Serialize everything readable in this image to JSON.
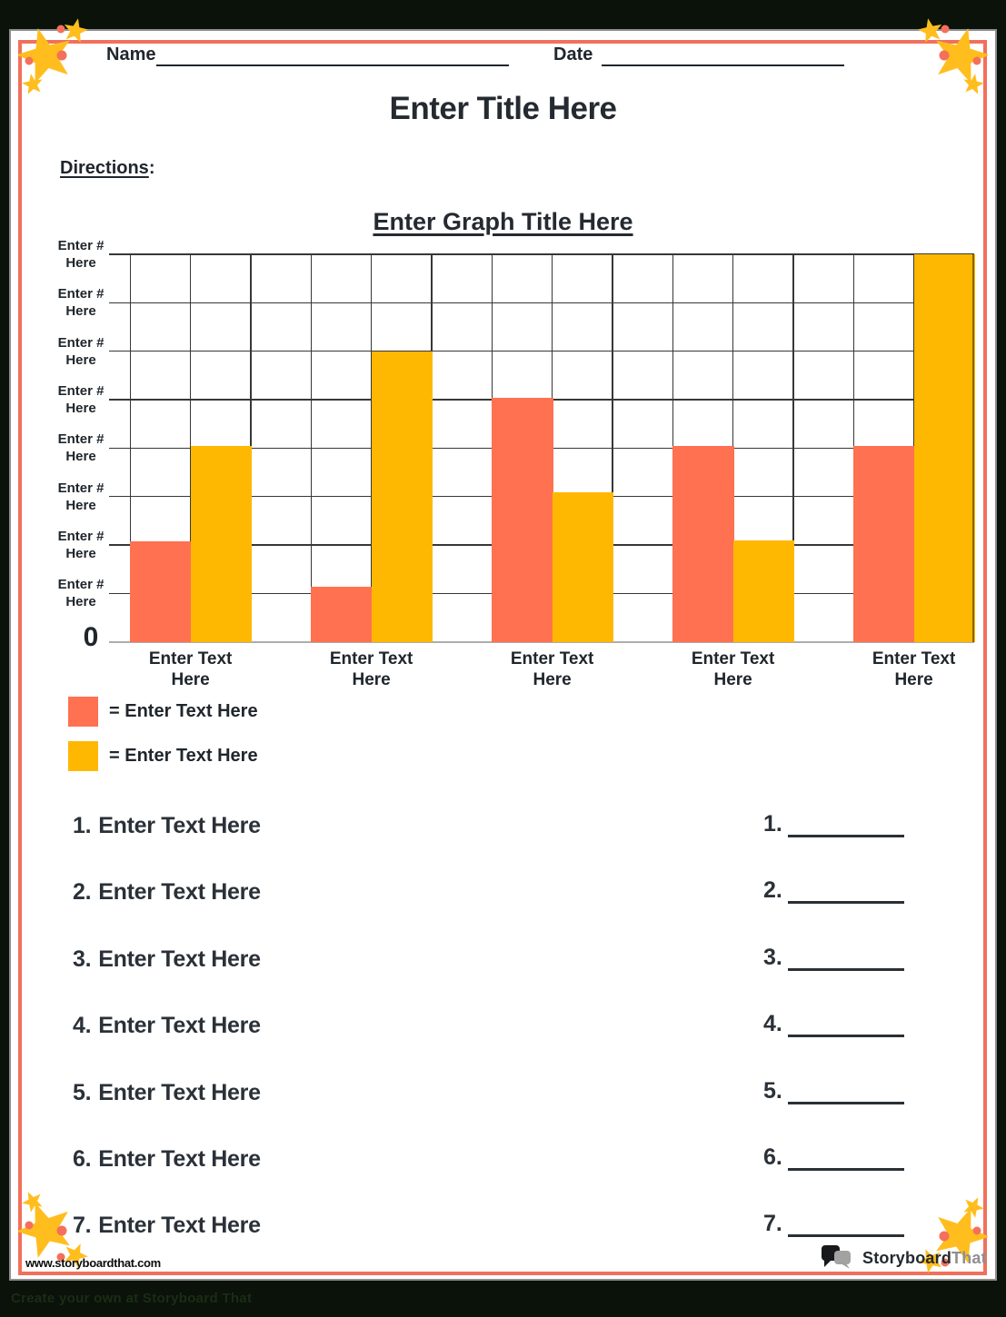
{
  "header": {
    "name_label": "Name",
    "date_label": "Date",
    "title": "Enter Title Here",
    "directions_label": "Directions",
    "directions_suffix": ":"
  },
  "chart_data": {
    "type": "bar",
    "title": "Enter Graph Title Here",
    "y_axis_tick_labels": [
      "Enter # Here",
      "Enter # Here",
      "Enter # Here",
      "Enter # Here",
      "Enter # Here",
      "Enter # Here",
      "Enter # Here",
      "Enter # Here"
    ],
    "y_origin_label": "0",
    "ylim": [
      0,
      8
    ],
    "grid": {
      "rows": 8,
      "columns": 14,
      "visible": true
    },
    "categories": [
      "Enter Text Here",
      "Enter Text Here",
      "Enter Text Here",
      "Enter Text Here",
      "Enter Text Here"
    ],
    "series": [
      {
        "name": "Enter Text Here",
        "legend_label": "= Enter Text Here",
        "color": "#FF7150",
        "values_grid_squares": [
          2.08,
          1.13,
          5.03,
          4.05,
          4.04
        ]
      },
      {
        "name": "Enter Text Here",
        "legend_label": "= Enter Text Here",
        "color": "#FFB802",
        "values_grid_squares": [
          4.04,
          6,
          3.08,
          2.1,
          8
        ]
      }
    ],
    "legend_position": "below-left"
  },
  "questions": [
    {
      "number": "1.",
      "text": "Enter Text Here"
    },
    {
      "number": "2.",
      "text": "Enter Text Here"
    },
    {
      "number": "3.",
      "text": "Enter Text Here"
    },
    {
      "number": "4.",
      "text": "Enter Text Here"
    },
    {
      "number": "5.",
      "text": "Enter Text Here"
    },
    {
      "number": "6.",
      "text": "Enter Text Here"
    },
    {
      "number": "7.",
      "text": "Enter Text Here"
    }
  ],
  "answer_blanks": [
    {
      "number": "1."
    },
    {
      "number": "2."
    },
    {
      "number": "3."
    },
    {
      "number": "4."
    },
    {
      "number": "5."
    },
    {
      "number": "6."
    },
    {
      "number": "7."
    }
  ],
  "footer": {
    "website": "www.storyboardthat.com",
    "logo_primary": "Storyboard",
    "logo_secondary": "That",
    "banner": "Create your own at Storyboard That"
  },
  "colors": {
    "page_background": "#0A120A",
    "frame_line_gray": "#8E8E8E",
    "page_border": "#F1705B",
    "text": "#232930",
    "grid_line": "#373737",
    "baseline": "#ADADAD",
    "bar_series_1": "#FF7150",
    "bar_series_2": "#FFB802",
    "star_yellow": "#FFBE1E",
    "star_dot_orange": "#F4705B",
    "logo_gray": "#8F8F8F",
    "banner_text": "#1B2D15"
  }
}
